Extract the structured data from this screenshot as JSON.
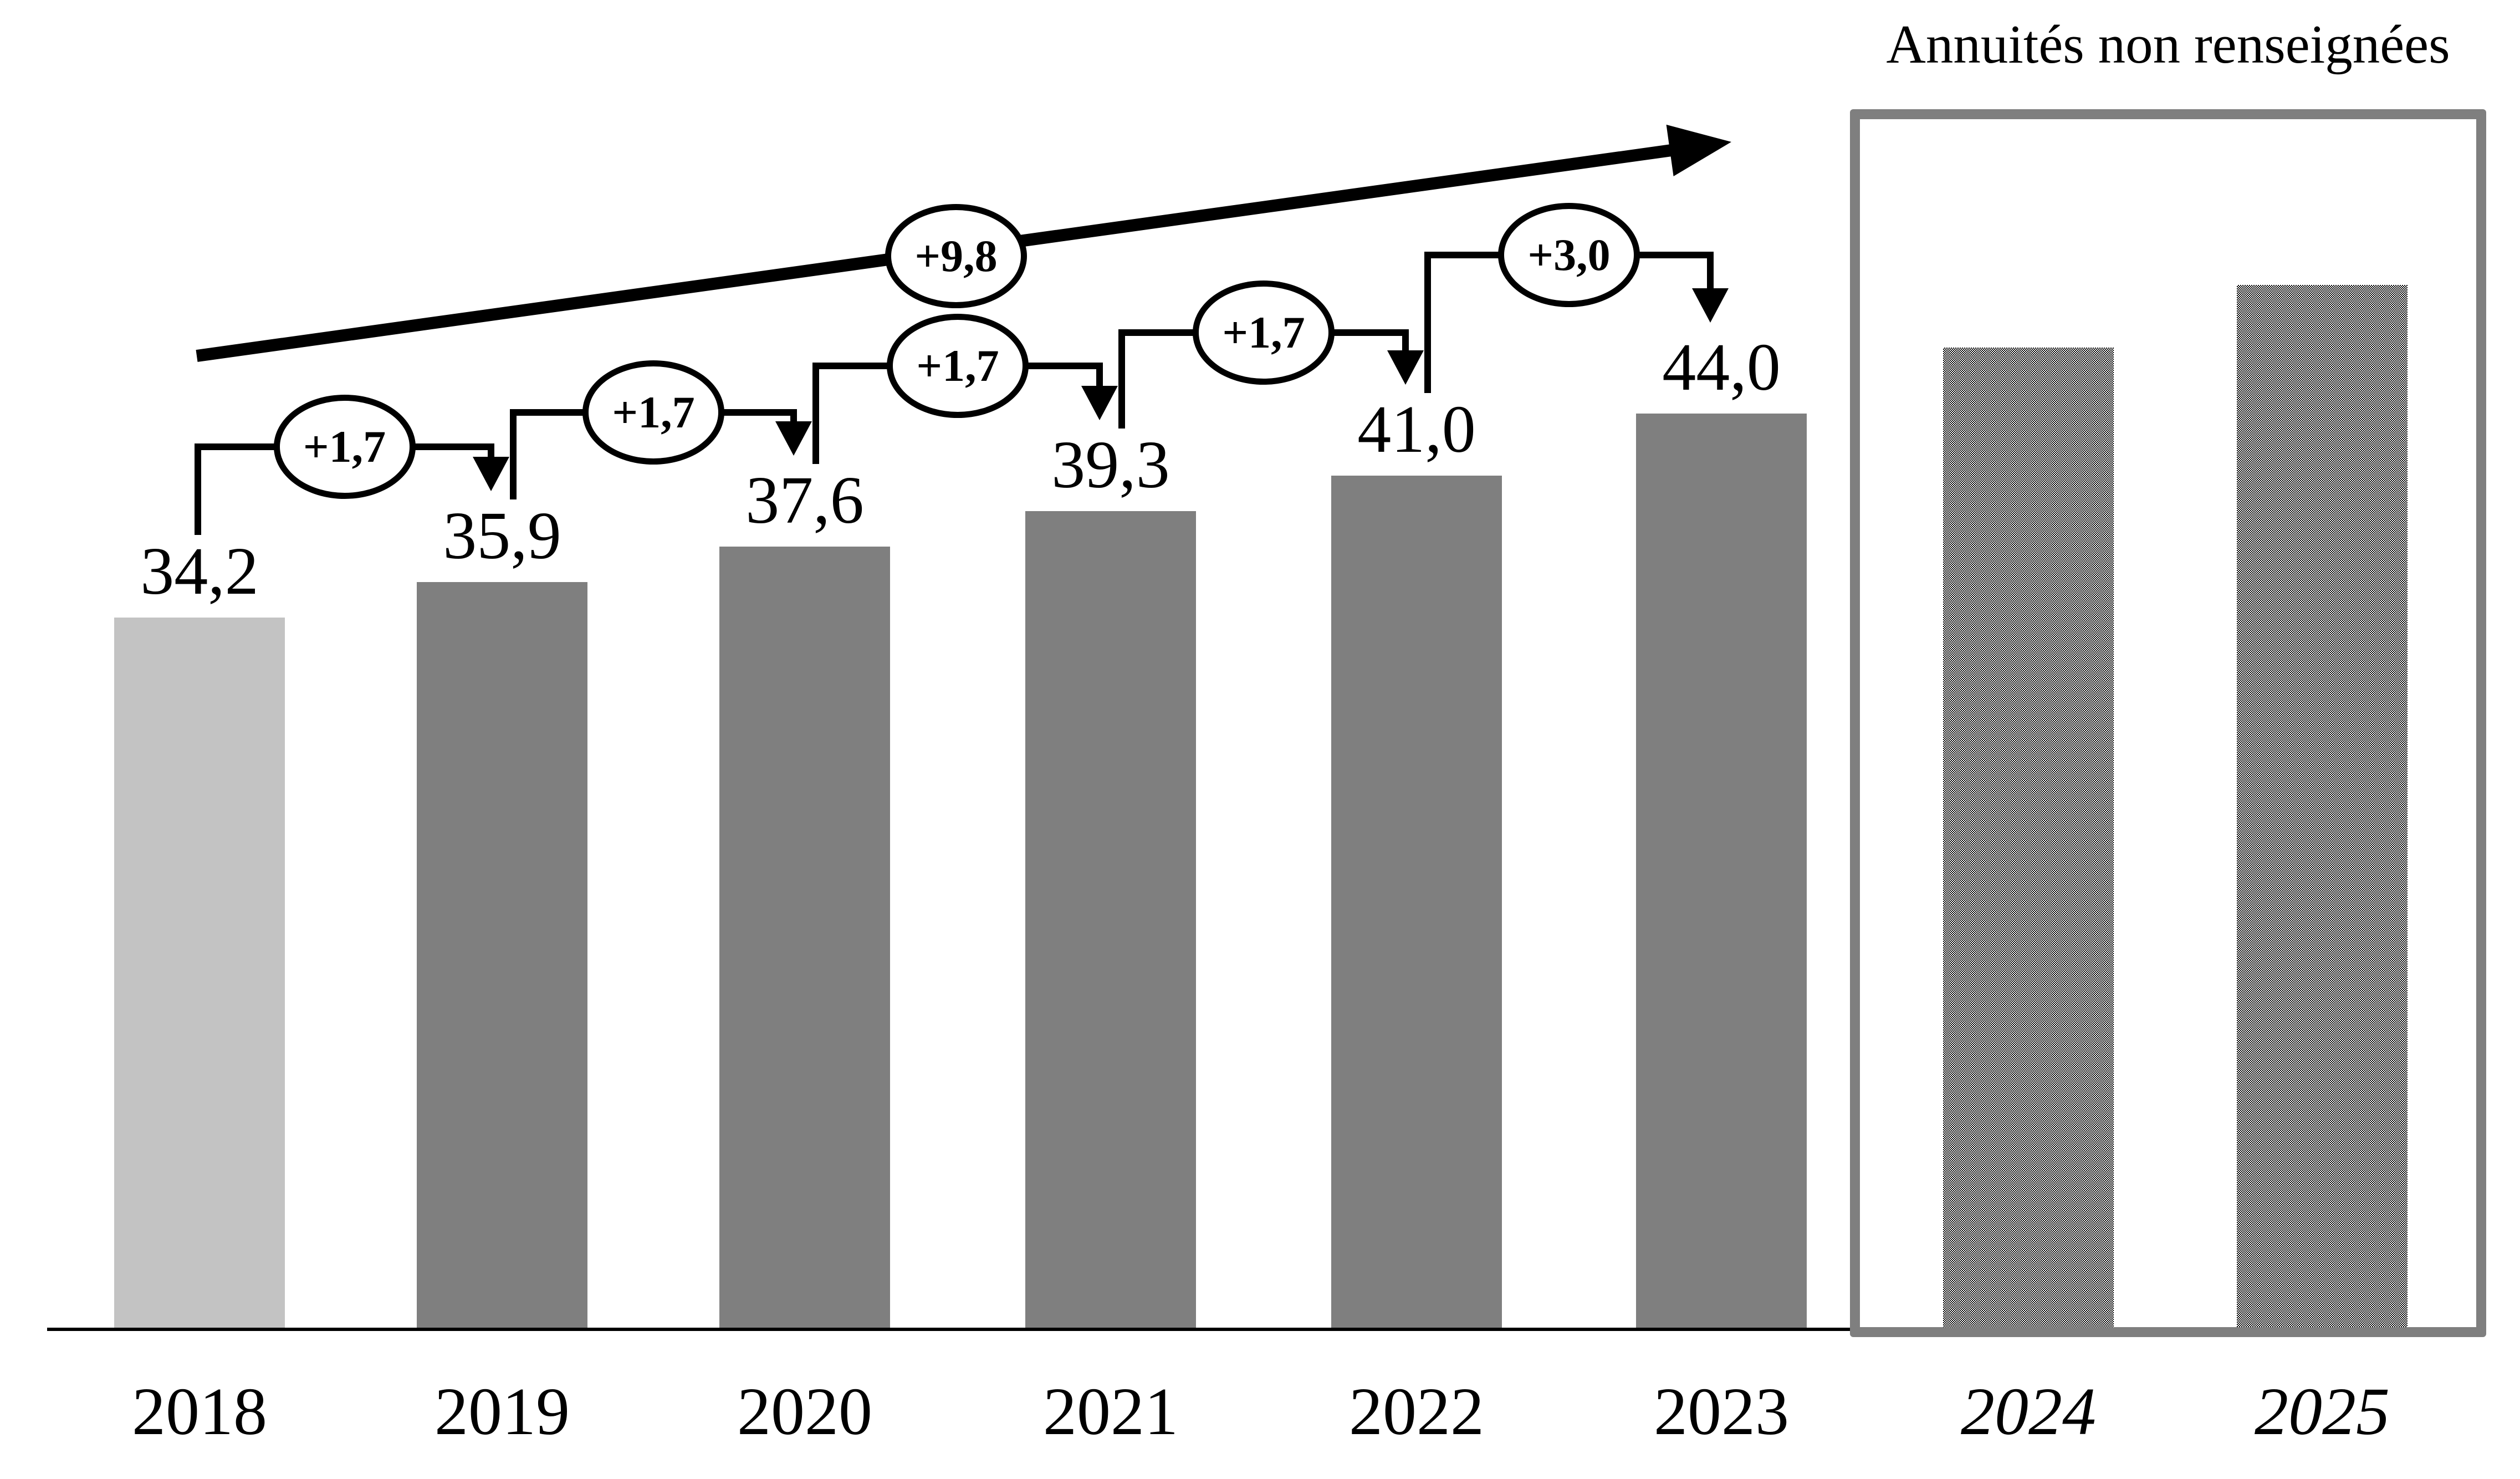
{
  "box_label": "Annuités non renseignées",
  "chart_data": {
    "type": "bar",
    "title": "",
    "xlabel": "",
    "ylabel": "",
    "categories": [
      "2018",
      "2019",
      "2020",
      "2021",
      "2022",
      "2023",
      "2024",
      "2025"
    ],
    "values": [
      34.2,
      35.9,
      37.6,
      39.3,
      41.0,
      44.0,
      47.0,
      50.0
    ],
    "bar_value_labels": [
      "34,2",
      "35,9",
      "37,6",
      "39,3",
      "41,0",
      "44,0",
      "",
      ""
    ],
    "estimated": [
      false,
      false,
      false,
      false,
      false,
      false,
      true,
      true
    ],
    "future_years": [
      "2024",
      "2025"
    ],
    "future_box_label": "Annuités non renseignées",
    "step_increments": [
      {
        "from": "2018",
        "to": "2019",
        "label": "+1,7"
      },
      {
        "from": "2019",
        "to": "2020",
        "label": "+1,7"
      },
      {
        "from": "2020",
        "to": "2021",
        "label": "+1,7"
      },
      {
        "from": "2021",
        "to": "2022",
        "label": "+1,7"
      },
      {
        "from": "2022",
        "to": "2023",
        "label": "+3,0"
      }
    ],
    "total_increment_label": "+9,8",
    "legend_position": "none",
    "grid": false,
    "ylim": [
      0,
      50
    ],
    "colors": {
      "bar_first": "#c3c3c3",
      "bar_default": "#7f7f7f",
      "future_bar_fill": "black-white-checkerboard-dither",
      "box_border": "#7f7f7f",
      "axis": "#000000",
      "text": "#000000",
      "oval_fill": "#ffffff",
      "oval_border": "#000000"
    }
  }
}
